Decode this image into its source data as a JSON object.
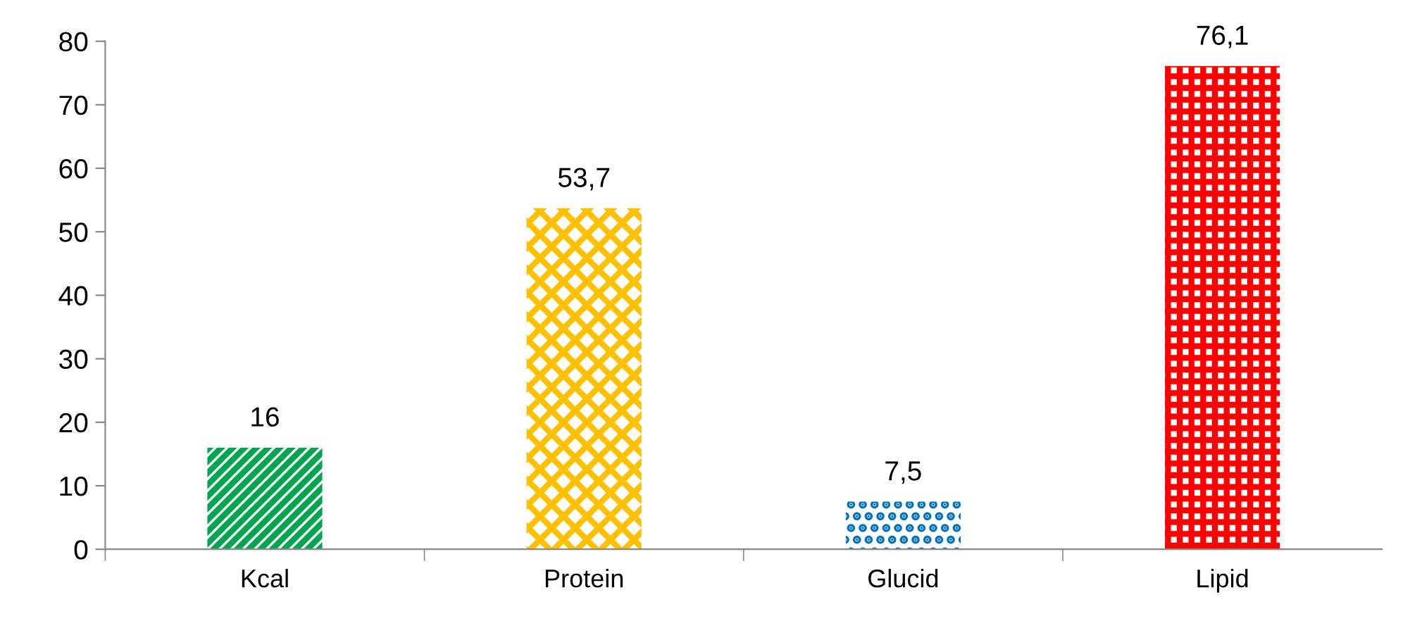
{
  "chart_data": {
    "type": "bar",
    "categories": [
      "Kcal",
      "Protein",
      "Glucid",
      "Lipid"
    ],
    "values": [
      16,
      53.7,
      7.5,
      76.1
    ],
    "value_labels": [
      "16",
      "53,7",
      "7,5",
      "76,1"
    ],
    "colors": [
      "#00a550",
      "#ffc000",
      "#0070c0",
      "#ff0000"
    ],
    "ylim": [
      0,
      80
    ],
    "yticks": [
      0,
      10,
      20,
      30,
      40,
      50,
      60,
      70,
      80
    ],
    "grid": false
  }
}
